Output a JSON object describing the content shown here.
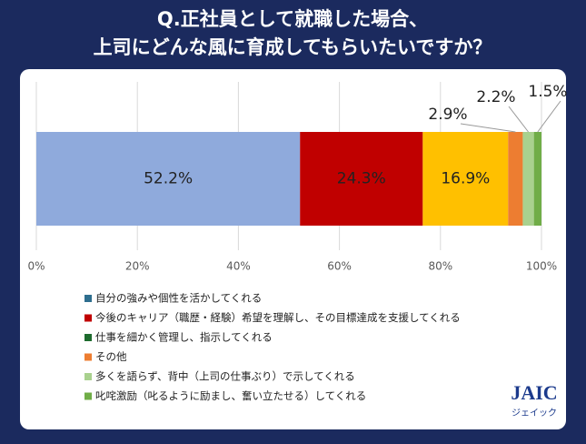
{
  "chart_data": {
    "type": "stacked-bar-horizontal",
    "title": [
      "Q.正社員として就職した場合、",
      "上司にどんな風に育成してもらいたいですか？"
    ],
    "series": [
      {
        "name": "自分の強みや個性を活かしてくれる",
        "color": "#8faadc",
        "legend_color": "#2e6e8e",
        "values": [
          52.2
        ],
        "value_labels": [
          "52.2%"
        ]
      },
      {
        "name": "今後のキャリア（職歴・経験）希望を理解し、その目標達成を支援してくれる",
        "color": "#c00000",
        "legend_color": "#c00000",
        "values": [
          24.3
        ],
        "value_labels": [
          "24.3%"
        ]
      },
      {
        "name": "仕事を細かく管理し、指示してくれる",
        "color": "#ffc000",
        "legend_color": "#1e6b2e",
        "values": [
          16.9
        ],
        "value_labels": [
          "16.9%"
        ]
      },
      {
        "name": "その他",
        "color": "#ed7d31",
        "legend_color": "#ed7d31",
        "values": [
          2.9
        ],
        "value_labels": [
          "2.9%"
        ]
      },
      {
        "name": "多くを語らず、背中（上司の仕事ぶり）で示してくれる",
        "color": "#a9d18e",
        "legend_color": "#a9d18e",
        "values": [
          2.2
        ],
        "value_labels": [
          "2.2%"
        ]
      },
      {
        "name": "叱咤激励（叱るように励まし、奮い立たせる）してくれる",
        "color": "#70ad47",
        "legend_color": "#70ad47",
        "values": [
          1.5
        ],
        "value_labels": [
          "1.5%"
        ]
      }
    ],
    "xlim": [
      0,
      100
    ],
    "xticks": [
      {
        "value": 0,
        "label": "0%"
      },
      {
        "value": 20,
        "label": "20%"
      },
      {
        "value": 40,
        "label": "40%"
      },
      {
        "value": 60,
        "label": "60%"
      },
      {
        "value": 80,
        "label": "80%"
      },
      {
        "value": 100,
        "label": "100%"
      }
    ],
    "grid": true
  },
  "logo": {
    "name": "JAIC",
    "subtitle": "ジェイック"
  }
}
